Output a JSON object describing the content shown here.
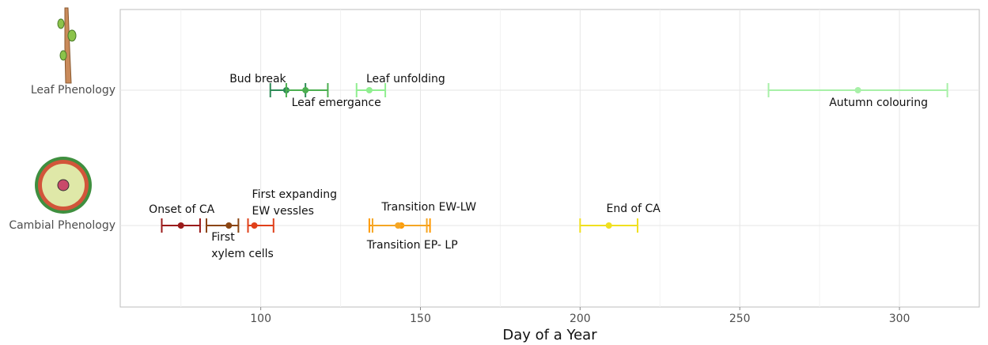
{
  "chart_data": {
    "type": "dotplot",
    "xlabel": "Day of a Year",
    "categories": [
      "Leaf Phenology",
      "Cambial Phenology"
    ],
    "xlim": [
      56,
      325
    ],
    "xticks": [
      100,
      150,
      200,
      250,
      300
    ],
    "minor_grid": [
      75,
      125,
      175,
      225,
      275
    ],
    "grid": true,
    "series": [
      {
        "name": "Bud break",
        "color": "#2e8b57",
        "values": [
          108,
          null
        ],
        "lower": [
          103,
          null
        ],
        "upper": [
          114,
          null
        ]
      },
      {
        "name": "Leaf emergance",
        "color": "#4caf50",
        "values": [
          114,
          null
        ],
        "lower": [
          108,
          null
        ],
        "upper": [
          121,
          null
        ]
      },
      {
        "name": "Leaf unfolding",
        "color": "#90ee90",
        "values": [
          134,
          null
        ],
        "lower": [
          130,
          null
        ],
        "upper": [
          139,
          null
        ]
      },
      {
        "name": "Autumn colouring",
        "color": "#a8f0a8",
        "values": [
          287,
          null
        ],
        "lower": [
          259,
          null
        ],
        "upper": [
          315,
          null
        ]
      },
      {
        "name": "Onset of CA",
        "color": "#9b1b1b",
        "values": [
          null,
          75
        ],
        "lower": [
          null,
          69
        ],
        "upper": [
          null,
          81
        ]
      },
      {
        "name": "First xylem cells",
        "color": "#8b4513",
        "values": [
          null,
          90
        ],
        "lower": [
          null,
          83
        ],
        "upper": [
          null,
          93
        ]
      },
      {
        "name": "First expanding EW vessles",
        "color": "#e0401a",
        "values": [
          null,
          98
        ],
        "lower": [
          null,
          96
        ],
        "upper": [
          null,
          104
        ]
      },
      {
        "name": "Transition EW-LW",
        "color": "#ff9900",
        "values": [
          null,
          144
        ],
        "lower": [
          null,
          134
        ],
        "upper": [
          null,
          153
        ]
      },
      {
        "name": "Transition EP- LP",
        "color": "#f5a623",
        "values": [
          null,
          143
        ],
        "lower": [
          null,
          135
        ],
        "upper": [
          null,
          152
        ]
      },
      {
        "name": "End of CA",
        "color": "#f0e020",
        "values": [
          null,
          209
        ],
        "lower": [
          null,
          200
        ],
        "upper": [
          null,
          218
        ]
      }
    ]
  }
}
